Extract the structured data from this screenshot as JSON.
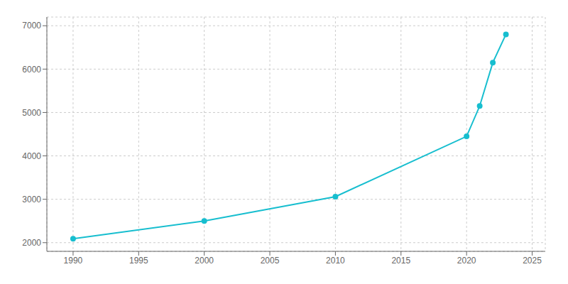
{
  "chart_data": {
    "type": "line",
    "x": [
      1990,
      2000,
      2010,
      2020,
      2021,
      2022,
      2023
    ],
    "values": [
      2090,
      2500,
      3060,
      4450,
      5150,
      6150,
      6800
    ],
    "color": "#17BECF",
    "marker": "circle",
    "xlim": [
      1988,
      2026
    ],
    "ylim": [
      1800,
      7200
    ],
    "xticks": [
      1990,
      1995,
      2000,
      2005,
      2010,
      2015,
      2020,
      2025
    ],
    "yticks": [
      2000,
      3000,
      4000,
      5000,
      6000,
      7000
    ],
    "grid": true
  }
}
